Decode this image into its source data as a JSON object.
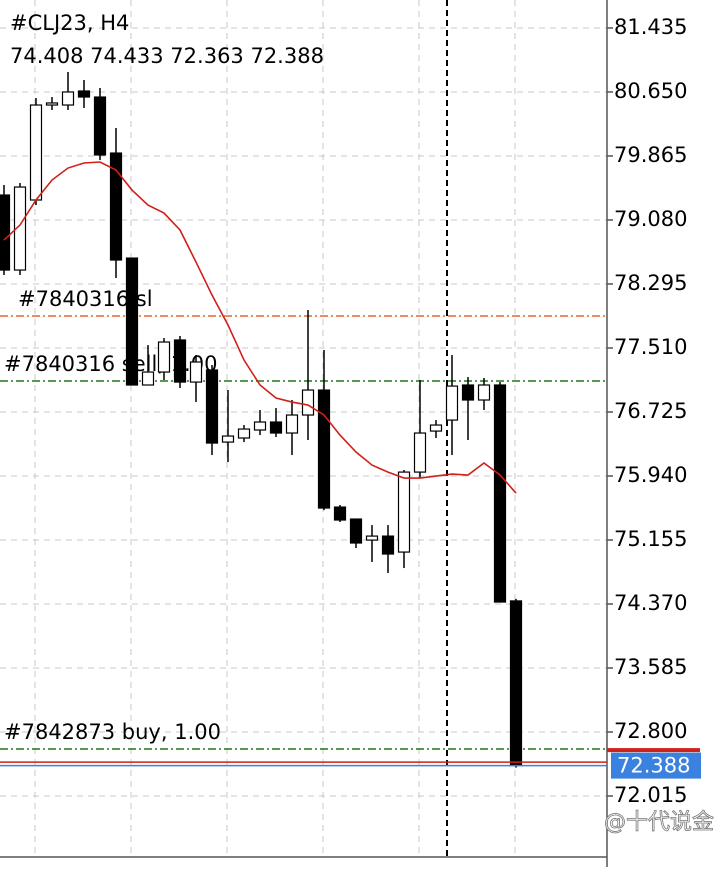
{
  "chart_data": {
    "type": "candlestick",
    "title": "#CLJ23, H4",
    "subtitle": "74.408 74.433 72.363 72.388",
    "open": [
      79.386,
      78.466,
      79.325,
      80.49,
      80.49,
      80.662,
      80.588,
      79.901,
      78.613,
      77.056,
      77.215,
      77.608,
      77.092,
      77.24,
      76.356,
      76.406,
      76.504,
      76.602,
      76.467,
      76.688,
      76.994,
      75.559,
      75.412,
      75.154,
      75.203,
      75.007,
      75.988,
      76.491,
      76.626,
      77.056,
      76.872,
      77.056,
      74.408
    ],
    "high": [
      79.509,
      79.533,
      80.576,
      80.588,
      80.895,
      80.797,
      80.699,
      80.208,
      78.613,
      77.546,
      77.632,
      77.657,
      77.424,
      77.301,
      76.994,
      76.565,
      76.749,
      76.773,
      76.872,
      77.976,
      77.485,
      75.584,
      75.412,
      75.338,
      75.338,
      76.013,
      77.117,
      76.626,
      77.424,
      77.154,
      77.142,
      77.093,
      74.433
    ],
    "low": [
      78.405,
      78.405,
      79.263,
      80.429,
      80.429,
      80.453,
      79.815,
      78.368,
      77.056,
      77.056,
      77.117,
      77.019,
      76.847,
      76.197,
      76.111,
      76.356,
      76.442,
      76.418,
      76.197,
      76.381,
      75.522,
      75.375,
      75.056,
      74.885,
      74.75,
      74.811,
      75.915,
      76.406,
      76.197,
      76.381,
      76.749,
      74.394,
      72.363
    ],
    "close": [
      78.466,
      79.484,
      80.49,
      80.515,
      80.65,
      80.588,
      79.877,
      78.589,
      77.056,
      77.215,
      77.583,
      77.092,
      77.338,
      76.344,
      76.43,
      76.516,
      76.602,
      76.467,
      76.688,
      76.994,
      75.547,
      75.4,
      75.118,
      75.203,
      74.983,
      75.988,
      76.467,
      76.565,
      77.043,
      76.872,
      77.056,
      74.394,
      72.388
    ],
    "moving_average": {
      "color": "#d0201a",
      "values": [
        78.834,
        79.018,
        79.325,
        79.57,
        79.717,
        79.779,
        79.791,
        79.693,
        79.447,
        79.263,
        79.165,
        78.957,
        78.564,
        78.16,
        77.792,
        77.362,
        77.056,
        76.896,
        76.847,
        76.81,
        76.688,
        76.442,
        76.234,
        76.074,
        75.988,
        75.915,
        75.915,
        75.939,
        75.964,
        75.952,
        76.099,
        75.952,
        75.731
      ]
    },
    "levels": [
      {
        "label": "#7840316 sl",
        "value": 77.902,
        "color": "#e8622c"
      },
      {
        "label": "#7840316 sell, 1.00",
        "value": 77.105,
        "color": "#1a7a1a"
      },
      {
        "label": "#7842873 buy, 1.00",
        "value": 72.591,
        "color": "#1a7a1a"
      }
    ],
    "ask_line": {
      "value": 72.431,
      "color": "#d0201a"
    },
    "last_price": {
      "value": 72.388,
      "color": "#3b82e0"
    },
    "ylim": [
      71.267,
      81.778
    ],
    "yticks": [
      81.435,
      {
        "value": 80.65,
        "label": "80.650"
      },
      79.865,
      {
        "value": 79.08,
        "label": "79.080"
      },
      78.295,
      {
        "value": 77.51,
        "label": "77.510"
      },
      76.725,
      {
        "value": 75.94,
        "label": "75.940"
      },
      75.155,
      {
        "value": 74.37,
        "label": "74.370"
      },
      73.585,
      {
        "value": 72.8,
        "label": "72.800"
      },
      72.015
    ],
    "grid": true,
    "watermark": "@十代说金"
  }
}
